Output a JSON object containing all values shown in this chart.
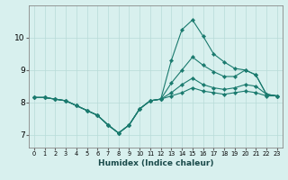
{
  "xlabel": "Humidex (Indice chaleur)",
  "bg_color": "#d8f0ee",
  "grid_color": "#b8dbd8",
  "line_color": "#1a7a6e",
  "x_values": [
    0,
    1,
    2,
    3,
    4,
    5,
    6,
    7,
    8,
    9,
    10,
    11,
    12,
    13,
    14,
    15,
    16,
    17,
    18,
    19,
    20,
    21,
    22,
    23
  ],
  "series": [
    [
      8.15,
      8.15,
      8.1,
      8.05,
      7.9,
      7.75,
      7.6,
      7.3,
      7.05,
      7.3,
      7.8,
      8.05,
      8.1,
      9.3,
      10.25,
      10.55,
      10.05,
      9.5,
      9.25,
      9.05,
      9.0,
      8.85,
      8.25,
      8.2
    ],
    [
      8.15,
      8.15,
      8.1,
      8.05,
      7.9,
      7.75,
      7.6,
      7.3,
      7.05,
      7.3,
      7.8,
      8.05,
      8.1,
      8.6,
      9.0,
      9.4,
      9.15,
      8.95,
      8.8,
      8.8,
      9.0,
      8.85,
      8.25,
      8.2
    ],
    [
      8.15,
      8.15,
      8.1,
      8.05,
      7.9,
      7.75,
      7.6,
      7.3,
      7.05,
      7.3,
      7.8,
      8.05,
      8.1,
      8.3,
      8.55,
      8.75,
      8.55,
      8.45,
      8.4,
      8.45,
      8.55,
      8.5,
      8.25,
      8.2
    ],
    [
      8.15,
      8.15,
      8.1,
      8.05,
      7.9,
      7.75,
      7.6,
      7.3,
      7.05,
      7.3,
      7.8,
      8.05,
      8.1,
      8.2,
      8.3,
      8.45,
      8.35,
      8.3,
      8.25,
      8.3,
      8.35,
      8.3,
      8.2,
      8.2
    ]
  ],
  "ylim": [
    6.6,
    11.0
  ],
  "yticks": [
    7,
    8,
    9,
    10
  ],
  "xticks": [
    0,
    1,
    2,
    3,
    4,
    5,
    6,
    7,
    8,
    9,
    10,
    11,
    12,
    13,
    14,
    15,
    16,
    17,
    18,
    19,
    20,
    21,
    22,
    23
  ],
  "xlim": [
    -0.5,
    23.5
  ]
}
